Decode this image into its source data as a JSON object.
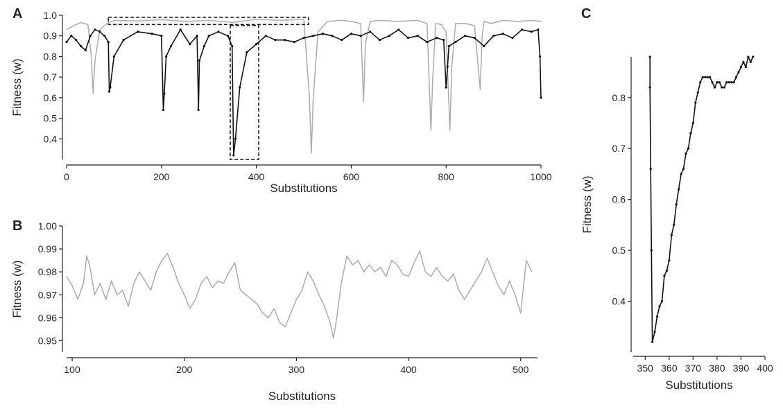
{
  "colors": {
    "black_series": "#111111",
    "gray_series": "#aaaaaa",
    "axis": "#222222",
    "box": "#111111"
  },
  "chart_data": [
    {
      "panel": "A",
      "type": "line",
      "xlabel": "Substitutions",
      "ylabel": "Fitness (w)",
      "xlim": [
        0,
        1000
      ],
      "ylim": [
        0.3,
        1.0
      ],
      "xticks": [
        0,
        200,
        400,
        600,
        800,
        1000
      ],
      "yticks": [
        0.4,
        0.5,
        0.6,
        0.7,
        0.8,
        0.9,
        1.0
      ],
      "xtick_labels": [
        "0",
        "200",
        "400",
        "600",
        "800",
        "1000"
      ],
      "ytick_labels": [
        "0.4",
        "0.5",
        "0.6",
        "0.7",
        "0.8",
        "0.9",
        "1.0"
      ],
      "series": [
        {
          "color": "gray",
          "x": [
            0,
            15,
            30,
            45,
            52,
            56,
            60,
            70,
            85,
            100,
            150,
            200,
            250,
            300,
            350,
            400,
            450,
            500,
            512,
            516,
            520,
            530,
            550,
            580,
            600,
            620,
            626,
            630,
            640,
            660,
            700,
            740,
            760,
            768,
            772,
            778,
            790,
            800,
            808,
            812,
            820,
            840,
            860,
            872,
            876,
            880,
            895,
            920,
            950,
            980,
            1000
          ],
          "y": [
            0.93,
            0.95,
            0.965,
            0.955,
            0.8,
            0.62,
            0.78,
            0.93,
            0.96,
            0.975,
            0.972,
            0.978,
            0.97,
            0.975,
            0.965,
            0.98,
            0.975,
            0.98,
            0.6,
            0.33,
            0.6,
            0.92,
            0.97,
            0.975,
            0.97,
            0.96,
            0.58,
            0.86,
            0.97,
            0.975,
            0.97,
            0.975,
            0.96,
            0.44,
            0.7,
            0.96,
            0.955,
            0.92,
            0.44,
            0.75,
            0.96,
            0.96,
            0.95,
            0.64,
            0.9,
            0.97,
            0.96,
            0.975,
            0.97,
            0.975,
            0.97
          ]
        },
        {
          "color": "black",
          "x": [
            0,
            10,
            20,
            30,
            40,
            50,
            60,
            70,
            80,
            88,
            90,
            92,
            100,
            120,
            150,
            180,
            200,
            204,
            206,
            210,
            220,
            240,
            260,
            275,
            278,
            280,
            290,
            300,
            320,
            340,
            349,
            352,
            356,
            365,
            380,
            400,
            420,
            440,
            460,
            480,
            500,
            520,
            540,
            560,
            580,
            600,
            620,
            640,
            660,
            680,
            700,
            720,
            740,
            760,
            780,
            795,
            800,
            803,
            806,
            820,
            840,
            860,
            880,
            900,
            920,
            940,
            960,
            980,
            994,
            998,
            1000
          ],
          "y": [
            0.87,
            0.9,
            0.88,
            0.85,
            0.83,
            0.9,
            0.93,
            0.92,
            0.9,
            0.87,
            0.63,
            0.65,
            0.8,
            0.88,
            0.92,
            0.91,
            0.9,
            0.54,
            0.62,
            0.8,
            0.85,
            0.93,
            0.86,
            0.9,
            0.54,
            0.78,
            0.85,
            0.9,
            0.92,
            0.9,
            0.85,
            0.32,
            0.4,
            0.65,
            0.82,
            0.86,
            0.9,
            0.88,
            0.88,
            0.87,
            0.89,
            0.9,
            0.91,
            0.9,
            0.88,
            0.91,
            0.9,
            0.92,
            0.88,
            0.9,
            0.93,
            0.89,
            0.9,
            0.87,
            0.89,
            0.88,
            0.65,
            0.75,
            0.85,
            0.87,
            0.9,
            0.89,
            0.85,
            0.9,
            0.91,
            0.89,
            0.93,
            0.92,
            0.93,
            0.8,
            0.6
          ]
        }
      ],
      "annotations": [
        {
          "type": "dashed-box",
          "x": [
            88,
            510
          ],
          "y": [
            0.955,
            0.99
          ]
        },
        {
          "type": "dashed-box",
          "x": [
            345,
            405
          ],
          "y": [
            0.3,
            0.95
          ]
        }
      ]
    },
    {
      "panel": "B",
      "type": "line",
      "xlabel": "Substitutions",
      "ylabel": "Fitness (w)",
      "xlim": [
        95,
        515
      ],
      "ylim": [
        0.945,
        1.0
      ],
      "xticks": [
        100,
        200,
        300,
        400,
        500
      ],
      "yticks": [
        0.95,
        0.96,
        0.97,
        0.98,
        0.99,
        1.0
      ],
      "xtick_labels": [
        "100",
        "200",
        "300",
        "400",
        "500"
      ],
      "ytick_labels": [
        "0.95",
        "0.96",
        "0.97",
        "0.98",
        "0.99",
        "1.00"
      ],
      "series": [
        {
          "color": "gray",
          "x": [
            95,
            100,
            105,
            110,
            113,
            116,
            120,
            125,
            130,
            135,
            140,
            145,
            150,
            155,
            160,
            165,
            170,
            175,
            180,
            185,
            190,
            195,
            200,
            205,
            210,
            215,
            220,
            225,
            230,
            235,
            240,
            245,
            250,
            255,
            260,
            265,
            270,
            275,
            280,
            285,
            290,
            295,
            300,
            305,
            310,
            315,
            320,
            325,
            330,
            333,
            336,
            340,
            345,
            350,
            355,
            360,
            365,
            370,
            375,
            380,
            385,
            390,
            395,
            400,
            405,
            410,
            415,
            420,
            425,
            430,
            435,
            440,
            445,
            450,
            455,
            460,
            465,
            470,
            475,
            480,
            485,
            490,
            495,
            500,
            505,
            510
          ],
          "y": [
            0.978,
            0.974,
            0.968,
            0.975,
            0.987,
            0.982,
            0.97,
            0.975,
            0.968,
            0.976,
            0.97,
            0.972,
            0.965,
            0.975,
            0.98,
            0.976,
            0.972,
            0.98,
            0.985,
            0.988,
            0.982,
            0.975,
            0.97,
            0.964,
            0.968,
            0.975,
            0.978,
            0.973,
            0.976,
            0.975,
            0.98,
            0.984,
            0.972,
            0.97,
            0.968,
            0.966,
            0.962,
            0.96,
            0.964,
            0.958,
            0.956,
            0.962,
            0.968,
            0.972,
            0.98,
            0.976,
            0.97,
            0.965,
            0.958,
            0.951,
            0.96,
            0.975,
            0.987,
            0.983,
            0.985,
            0.98,
            0.983,
            0.98,
            0.982,
            0.978,
            0.985,
            0.983,
            0.979,
            0.978,
            0.984,
            0.989,
            0.98,
            0.978,
            0.982,
            0.978,
            0.976,
            0.979,
            0.972,
            0.968,
            0.972,
            0.976,
            0.98,
            0.986,
            0.98,
            0.974,
            0.97,
            0.976,
            0.97,
            0.962,
            0.985,
            0.98
          ]
        }
      ]
    },
    {
      "panel": "C",
      "type": "line",
      "xlabel": "Substitutions",
      "ylabel": "Fitness (w)",
      "xlim": [
        345,
        400
      ],
      "ylim": [
        0.3,
        0.88
      ],
      "xticks": [
        350,
        360,
        370,
        380,
        390,
        400
      ],
      "yticks": [
        0.4,
        0.5,
        0.6,
        0.7,
        0.8
      ],
      "xtick_labels": [
        "350",
        "360",
        "370",
        "380",
        "390",
        "400"
      ],
      "ytick_labels": [
        "0.4",
        "0.5",
        "0.6",
        "0.7",
        "0.8"
      ],
      "series": [
        {
          "color": "black",
          "x": [
            352,
            352,
            352.3,
            352.6,
            353,
            354,
            355,
            356,
            357,
            358,
            359,
            360,
            361,
            362,
            363,
            364,
            365,
            366,
            367,
            368,
            369,
            370,
            371,
            372,
            373,
            374,
            375,
            376,
            377,
            378,
            379,
            380,
            381,
            382,
            383,
            384,
            385,
            386,
            387,
            388,
            389,
            390,
            391,
            392,
            393,
            394,
            395
          ],
          "y": [
            0.88,
            0.82,
            0.66,
            0.5,
            0.32,
            0.34,
            0.37,
            0.39,
            0.4,
            0.45,
            0.46,
            0.48,
            0.53,
            0.55,
            0.59,
            0.62,
            0.65,
            0.66,
            0.69,
            0.7,
            0.73,
            0.75,
            0.79,
            0.81,
            0.83,
            0.84,
            0.84,
            0.84,
            0.84,
            0.83,
            0.82,
            0.83,
            0.83,
            0.82,
            0.82,
            0.83,
            0.83,
            0.83,
            0.83,
            0.84,
            0.85,
            0.86,
            0.87,
            0.86,
            0.88,
            0.87,
            0.88
          ]
        }
      ]
    }
  ]
}
